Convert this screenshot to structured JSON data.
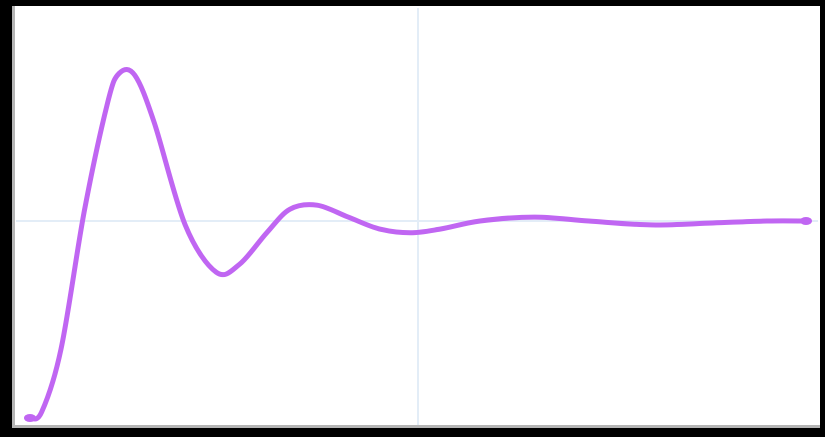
{
  "colors": {
    "background": "#000000",
    "plot_background": "#ffffff",
    "gridline": "#e3edf7",
    "axis": "#b5b5b5",
    "series": "#c066f2"
  },
  "chart_data": {
    "type": "line",
    "title": "",
    "xlabel": "",
    "ylabel": "",
    "x_range": [
      0,
      10
    ],
    "y_range": [
      0,
      2
    ],
    "grid": {
      "vertical": [
        5
      ],
      "horizontal": [
        1
      ]
    },
    "legend": "none",
    "series": [
      {
        "values": [
          [
            0,
            0
          ],
          [
            0.15,
            0.03
          ],
          [
            0.4,
            0.35
          ],
          [
            0.7,
            1.05
          ],
          [
            1.0,
            1.6
          ],
          [
            1.15,
            1.75
          ],
          [
            1.35,
            1.74
          ],
          [
            1.6,
            1.5
          ],
          [
            2.0,
            0.98
          ],
          [
            2.4,
            0.74
          ],
          [
            2.7,
            0.78
          ],
          [
            3.05,
            0.94
          ],
          [
            3.35,
            1.06
          ],
          [
            3.7,
            1.08
          ],
          [
            4.1,
            1.02
          ],
          [
            4.5,
            0.96
          ],
          [
            4.9,
            0.94
          ],
          [
            5.3,
            0.96
          ],
          [
            5.8,
            1.0
          ],
          [
            6.5,
            1.02
          ],
          [
            7.2,
            1.0
          ],
          [
            8.0,
            0.98
          ],
          [
            8.8,
            0.99
          ],
          [
            9.5,
            1.0
          ],
          [
            10.0,
            1.0
          ]
        ]
      }
    ]
  }
}
